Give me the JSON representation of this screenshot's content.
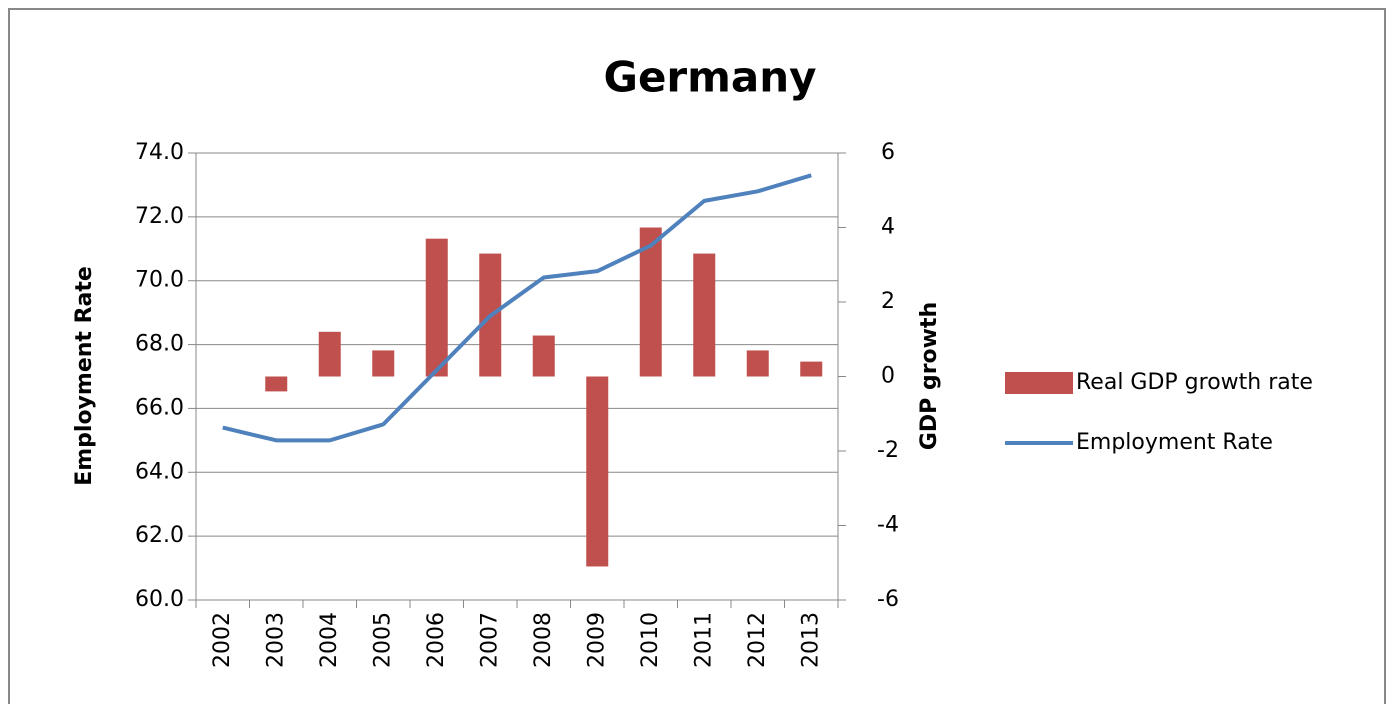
{
  "chart_data": {
    "type": "bar_line",
    "title": "Germany",
    "categories": [
      "2002",
      "2003",
      "2004",
      "2005",
      "2006",
      "2007",
      "2008",
      "2009",
      "2010",
      "2011",
      "2012",
      "2013"
    ],
    "series": [
      {
        "name": "Real GDP growth rate",
        "type": "bar",
        "axis": "y2",
        "color": "#c0504d",
        "values": [
          0.0,
          -0.4,
          1.2,
          0.7,
          3.7,
          3.3,
          1.1,
          -5.1,
          4.0,
          3.3,
          0.7,
          0.4
        ]
      },
      {
        "name": "Employment Rate",
        "type": "line",
        "axis": "y",
        "color": "#4f81bd",
        "values": [
          65.4,
          65.0,
          65.0,
          65.5,
          67.2,
          68.9,
          70.1,
          70.3,
          71.1,
          72.5,
          72.8,
          73.3
        ]
      }
    ],
    "ylabel": "Employment Rate",
    "y2label": "GDP growth",
    "ylim": [
      60,
      74
    ],
    "yticks": [
      {
        "value": 60,
        "label": "60.0"
      },
      {
        "value": 62,
        "label": "62.0"
      },
      {
        "value": 64,
        "label": "64.0"
      },
      {
        "value": 66,
        "label": "66.0"
      },
      {
        "value": 68,
        "label": "68.0"
      },
      {
        "value": 70,
        "label": "70.0"
      },
      {
        "value": 72,
        "label": "72.0"
      },
      {
        "value": 74,
        "label": "74.0"
      }
    ],
    "y2lim": [
      -6,
      6
    ],
    "y2ticks": [
      -6,
      -4,
      -2,
      0,
      2,
      4,
      6
    ],
    "grid": true,
    "legend": "right"
  }
}
